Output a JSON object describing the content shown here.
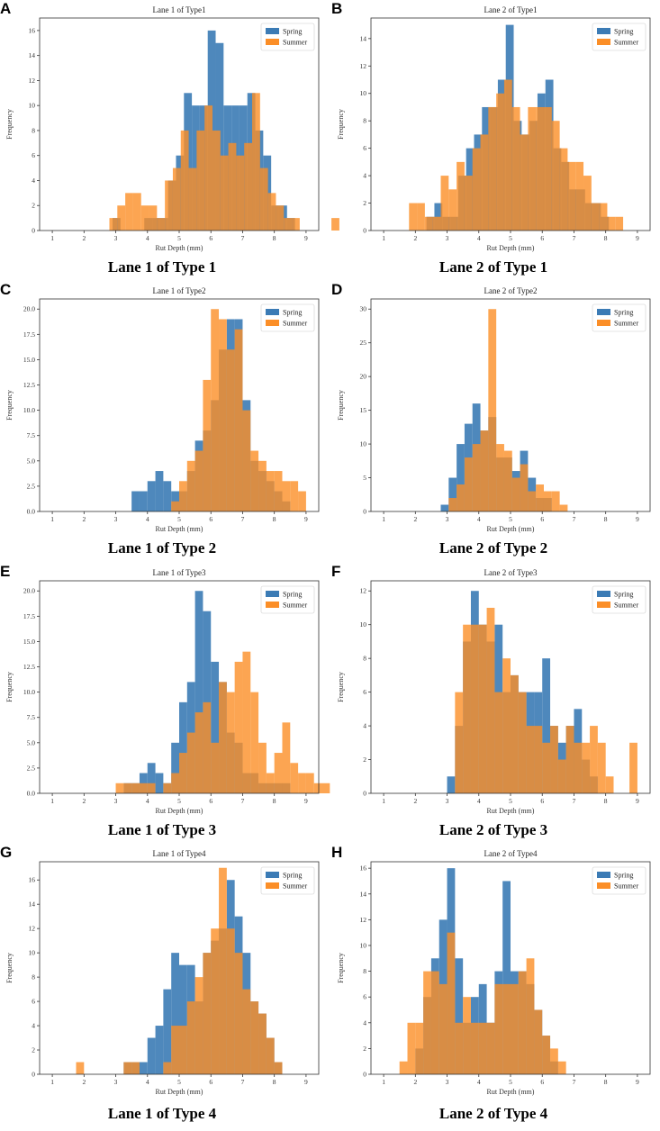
{
  "series_names": [
    "Spring",
    "Summer"
  ],
  "colors": {
    "spring": "#3b7bb5",
    "summer": "#fb8e27",
    "overlap": "#c47a3b"
  },
  "xlabel": "Rut Depth (mm)",
  "ylabel": "Frequency",
  "chart_data": [
    {
      "panel": "A",
      "caption": "Lane 1 of Type 1",
      "type": "bar",
      "title": "Lane 1 of Type1",
      "xlabel": "Rut Depth (mm)",
      "ylabel": "Frequency",
      "xlim": [
        0.6,
        9.4
      ],
      "ylim": [
        0,
        17
      ],
      "xticks": [
        1,
        2,
        3,
        4,
        5,
        6,
        7,
        8,
        9
      ],
      "xtick_labels": [
        "1",
        "2",
        "3",
        "4",
        "5",
        "6",
        "7",
        "8",
        "9"
      ],
      "yticks": [
        0,
        2,
        4,
        6,
        8,
        10,
        12,
        14,
        16
      ],
      "ytick_labels": [
        "0",
        "2",
        "4",
        "6",
        "8",
        "10",
        "12",
        "14",
        "16"
      ],
      "series": [
        {
          "name": "Spring",
          "start": 2.9,
          "width": 0.25,
          "values": [
            1,
            0,
            0,
            0,
            1,
            1,
            1,
            4,
            6,
            11,
            10,
            10,
            16,
            15,
            10,
            10,
            10,
            11,
            8,
            6,
            2,
            2,
            1,
            0,
            0,
            0,
            0,
            0,
            0,
            0
          ]
        },
        {
          "name": "Summer",
          "start": 2.8,
          "width": 0.25,
          "values": [
            1,
            2,
            3,
            3,
            2,
            2,
            1,
            4,
            5,
            8,
            5,
            8,
            10,
            8,
            6,
            7,
            6,
            7,
            11,
            5,
            3,
            2,
            1,
            1,
            0,
            0,
            0,
            0,
            1,
            0
          ]
        }
      ]
    },
    {
      "panel": "B",
      "caption": "Lane 2 of Type 1",
      "type": "bar",
      "title": "Lane 2 of Type1",
      "xlabel": "Rut Depth (mm)",
      "ylabel": "Frequency",
      "xlim": [
        0.6,
        9.4
      ],
      "ylim": [
        0,
        15.5
      ],
      "xticks": [
        1,
        2,
        3,
        4,
        5,
        6,
        7,
        8,
        9
      ],
      "xtick_labels": [
        "1",
        "2",
        "3",
        "4",
        "5",
        "6",
        "7",
        "8",
        "9"
      ],
      "yticks": [
        0,
        2,
        4,
        6,
        8,
        10,
        12,
        14
      ],
      "ytick_labels": [
        "0",
        "2",
        "4",
        "6",
        "8",
        "10",
        "12",
        "14"
      ],
      "series": [
        {
          "name": "Spring",
          "start": 1.85,
          "width": 0.25,
          "values": [
            0,
            0,
            1,
            2,
            1,
            1,
            4,
            6,
            7,
            9,
            9,
            11,
            15,
            8,
            7,
            8,
            10,
            11,
            6,
            5,
            3,
            3,
            2,
            2,
            1,
            0,
            0
          ]
        },
        {
          "name": "Summer",
          "start": 1.8,
          "width": 0.25,
          "values": [
            2,
            2,
            1,
            1,
            4,
            3,
            5,
            4,
            6,
            7,
            9,
            10,
            11,
            9,
            7,
            9,
            9,
            9,
            8,
            6,
            5,
            5,
            4,
            2,
            2,
            1,
            1
          ]
        }
      ]
    },
    {
      "panel": "C",
      "caption": "Lane 1 of Type 2",
      "type": "bar",
      "title": "Lane 1 of Type2",
      "xlabel": "Rut Depth (mm)",
      "ylabel": "Frequency",
      "xlim": [
        0.6,
        9.4
      ],
      "ylim": [
        0,
        21
      ],
      "xticks": [
        1,
        2,
        3,
        4,
        5,
        6,
        7,
        8,
        9
      ],
      "xtick_labels": [
        "1",
        "2",
        "3",
        "4",
        "5",
        "6",
        "7",
        "8",
        "9"
      ],
      "yticks": [
        0,
        2.5,
        5,
        7.5,
        10,
        12.5,
        15,
        17.5,
        20
      ],
      "ytick_labels": [
        "0.0",
        "2.5",
        "5.0",
        "7.5",
        "10.0",
        "12.5",
        "15.0",
        "17.5",
        "20.0"
      ],
      "series": [
        {
          "name": "Spring",
          "start": 3.5,
          "width": 0.25,
          "values": [
            2,
            2,
            3,
            4,
            3,
            2,
            2,
            4,
            7,
            8,
            11,
            16,
            19,
            19,
            11,
            5,
            4,
            3,
            2,
            1
          ]
        },
        {
          "name": "Summer",
          "start": 3.5,
          "width": 0.25,
          "values": [
            0,
            0,
            0,
            0,
            0,
            1,
            3,
            5,
            6,
            13,
            20,
            19,
            16,
            18,
            10,
            6,
            5,
            4,
            4,
            3,
            3,
            2
          ]
        }
      ]
    },
    {
      "panel": "D",
      "caption": "Lane 2 of Type 2",
      "type": "bar",
      "title": "Lane 2 of Type2",
      "xlabel": "Rut Depth (mm)",
      "ylabel": "Frequency",
      "xlim": [
        0.6,
        9.4
      ],
      "ylim": [
        0,
        31.5
      ],
      "xticks": [
        1,
        2,
        3,
        4,
        5,
        6,
        7,
        8,
        9
      ],
      "xtick_labels": [
        "1",
        "2",
        "3",
        "4",
        "5",
        "6",
        "7",
        "8",
        "9"
      ],
      "yticks": [
        0,
        5,
        10,
        15,
        20,
        25,
        30
      ],
      "ytick_labels": [
        "0",
        "5",
        "10",
        "15",
        "20",
        "25",
        "30"
      ],
      "series": [
        {
          "name": "Spring",
          "start": 2.8,
          "width": 0.25,
          "values": [
            1,
            5,
            10,
            13,
            16,
            12,
            14,
            8,
            8,
            6,
            9,
            5,
            2,
            2,
            0,
            0
          ]
        },
        {
          "name": "Summer",
          "start": 2.8,
          "width": 0.25,
          "values": [
            0,
            2,
            4,
            8,
            10,
            12,
            30,
            10,
            9,
            5,
            7,
            3,
            4,
            3,
            3,
            1
          ]
        }
      ]
    },
    {
      "panel": "E",
      "caption": "Lane 1 of Type 3",
      "type": "bar",
      "title": "Lane 1 of Type3",
      "xlabel": "Rut Depth (mm)",
      "ylabel": "Frequency",
      "xlim": [
        0.6,
        9.4
      ],
      "ylim": [
        0,
        21
      ],
      "xticks": [
        1,
        2,
        3,
        4,
        5,
        6,
        7,
        8,
        9
      ],
      "xtick_labels": [
        "1",
        "2",
        "3",
        "4",
        "5",
        "6",
        "7",
        "8",
        "9"
      ],
      "yticks": [
        0,
        2.5,
        5,
        7.5,
        10,
        12.5,
        15,
        17.5,
        20
      ],
      "ytick_labels": [
        "0.0",
        "2.5",
        "5.0",
        "7.5",
        "10.0",
        "12.5",
        "15.0",
        "17.5",
        "20.0"
      ],
      "series": [
        {
          "name": "Spring",
          "start": 3.0,
          "width": 0.25,
          "values": [
            0,
            1,
            1,
            2,
            3,
            2,
            1,
            5,
            9,
            11,
            20,
            18,
            13,
            11,
            6,
            5,
            2,
            2,
            1,
            1,
            1,
            1,
            0,
            0,
            0,
            0,
            0
          ]
        },
        {
          "name": "Summer",
          "start": 3.0,
          "width": 0.25,
          "values": [
            1,
            1,
            1,
            1,
            1,
            0,
            1,
            2,
            4,
            6,
            8,
            9,
            5,
            11,
            10,
            13,
            14,
            10,
            5,
            2,
            4,
            7,
            3,
            2,
            2,
            1,
            1
          ]
        }
      ]
    },
    {
      "panel": "F",
      "caption": "Lane 2 of Type 3",
      "type": "bar",
      "title": "Lane 2 of Type3",
      "xlabel": "Rut Depth (mm)",
      "ylabel": "Frequency",
      "xlim": [
        0.6,
        9.4
      ],
      "ylim": [
        0,
        12.6
      ],
      "xticks": [
        1,
        2,
        3,
        4,
        5,
        6,
        7,
        8,
        9
      ],
      "xtick_labels": [
        "1",
        "2",
        "3",
        "4",
        "5",
        "6",
        "7",
        "8",
        "9"
      ],
      "yticks": [
        0,
        2,
        4,
        6,
        8,
        10,
        12
      ],
      "ytick_labels": [
        "0",
        "2",
        "4",
        "6",
        "8",
        "10",
        "12"
      ],
      "series": [
        {
          "name": "Spring",
          "start": 3.0,
          "width": 0.25,
          "values": [
            1,
            4,
            9,
            12,
            10,
            9,
            10,
            6,
            7,
            6,
            6,
            6,
            8,
            4,
            3,
            4,
            5,
            2,
            1,
            0,
            0,
            0,
            0,
            0
          ]
        },
        {
          "name": "Summer",
          "start": 3.0,
          "width": 0.25,
          "values": [
            0,
            6,
            10,
            10,
            10,
            11,
            6,
            8,
            7,
            6,
            4,
            4,
            3,
            4,
            2,
            4,
            3,
            3,
            4,
            3,
            1,
            0,
            0,
            3
          ]
        }
      ]
    },
    {
      "panel": "G",
      "caption": "Lane 1 of Type 4",
      "type": "bar",
      "title": "Lane 1 of Type4",
      "xlabel": "Rut Depth (mm)",
      "ylabel": "Frequency",
      "xlim": [
        0.6,
        9.4
      ],
      "ylim": [
        0,
        17.5
      ],
      "xticks": [
        1,
        2,
        3,
        4,
        5,
        6,
        7,
        8,
        9
      ],
      "xtick_labels": [
        "1",
        "2",
        "3",
        "4",
        "5",
        "6",
        "7",
        "8",
        "9"
      ],
      "yticks": [
        0,
        2,
        4,
        6,
        8,
        10,
        12,
        14,
        16
      ],
      "ytick_labels": [
        "0",
        "2",
        "4",
        "6",
        "8",
        "10",
        "12",
        "14",
        "16"
      ],
      "series": [
        {
          "name": "Spring",
          "start": 1.75,
          "width": 0.25,
          "values": [
            0,
            0,
            0,
            0,
            0,
            0,
            1,
            1,
            1,
            3,
            4,
            7,
            10,
            9,
            9,
            6,
            10,
            11,
            12,
            16,
            13,
            10,
            6,
            5,
            3,
            1,
            0
          ]
        },
        {
          "name": "Summer",
          "start": 1.75,
          "width": 0.25,
          "values": [
            1,
            0,
            0,
            0,
            0,
            0,
            1,
            1,
            0,
            0,
            0,
            1,
            4,
            4,
            6,
            8,
            10,
            12,
            17,
            12,
            10,
            7,
            6,
            5,
            3,
            1,
            0
          ]
        }
      ]
    },
    {
      "panel": "H",
      "caption": "Lane 2 of Type 4",
      "type": "bar",
      "title": "Lane 2 of Type4",
      "xlabel": "Rut Depth (mm)",
      "ylabel": "Frequency",
      "xlim": [
        0.6,
        9.4
      ],
      "ylim": [
        0,
        16.5
      ],
      "xticks": [
        1,
        2,
        3,
        4,
        5,
        6,
        7,
        8,
        9
      ],
      "xtick_labels": [
        "1",
        "2",
        "3",
        "4",
        "5",
        "6",
        "7",
        "8",
        "9"
      ],
      "yticks": [
        0,
        2,
        4,
        6,
        8,
        10,
        12,
        14,
        16
      ],
      "ytick_labels": [
        "0",
        "2",
        "4",
        "6",
        "8",
        "10",
        "12",
        "14",
        "16"
      ],
      "series": [
        {
          "name": "Spring",
          "start": 1.5,
          "width": 0.25,
          "values": [
            0,
            0,
            2,
            6,
            9,
            12,
            16,
            9,
            4,
            6,
            7,
            4,
            8,
            15,
            8,
            8,
            7,
            5,
            3,
            1,
            0
          ]
        },
        {
          "name": "Summer",
          "start": 1.5,
          "width": 0.25,
          "values": [
            1,
            4,
            4,
            8,
            8,
            7,
            11,
            4,
            6,
            4,
            4,
            4,
            7,
            7,
            7,
            8,
            9,
            5,
            3,
            2,
            1
          ]
        }
      ]
    }
  ]
}
